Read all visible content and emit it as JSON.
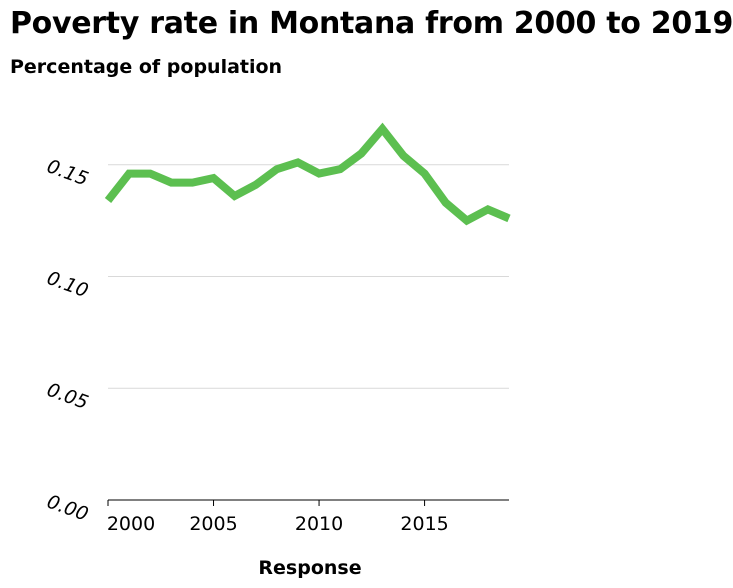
{
  "chart_data": {
    "type": "line",
    "title": "Poverty rate in Montana from 2000 to 2019",
    "subtitle": "Percentage of population",
    "xlabel": "Response",
    "ylabel": "",
    "x": [
      2000,
      2001,
      2002,
      2003,
      2004,
      2005,
      2006,
      2007,
      2008,
      2009,
      2010,
      2011,
      2012,
      2013,
      2014,
      2015,
      2016,
      2017,
      2018,
      2019
    ],
    "values": [
      0.134,
      0.146,
      0.146,
      0.142,
      0.142,
      0.144,
      0.136,
      0.141,
      0.148,
      0.151,
      0.146,
      0.148,
      0.155,
      0.166,
      0.154,
      0.146,
      0.133,
      0.125,
      0.13,
      0.126
    ],
    "xlim": [
      2000,
      2019
    ],
    "ylim": [
      0,
      0.17
    ],
    "x_ticks": [
      2000,
      2005,
      2010,
      2015
    ],
    "x_tick_labels": [
      "2000",
      "2005",
      "2010",
      "2015"
    ],
    "y_ticks": [
      0.0,
      0.05,
      0.1,
      0.15
    ],
    "y_tick_labels": [
      "0.00",
      "0.05",
      "0.10",
      "0.15"
    ],
    "grid": true,
    "line_color": "#5cbf50"
  }
}
